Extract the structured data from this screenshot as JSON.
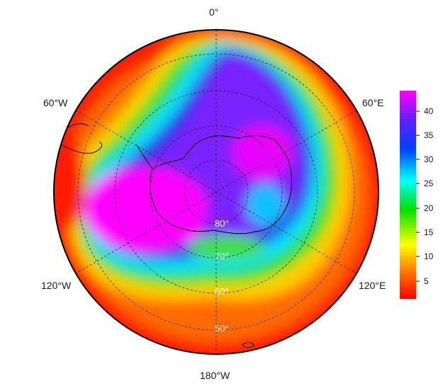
{
  "map": {
    "projection": "south polar stereographic",
    "longitude_labels": {
      "top": "0°",
      "left_top": "60°W",
      "right_top": "60°E",
      "left_bottom": "120°W",
      "right_bottom": "120°E",
      "bottom": "180°W"
    },
    "latitude_labels": [
      "80°",
      "70°",
      "60°",
      "50°"
    ],
    "colorbar": {
      "ticks": [
        "40",
        "35",
        "30",
        "25",
        "20",
        "15",
        "10",
        "5"
      ],
      "range": [
        1,
        44
      ],
      "colors": [
        "#ff0000",
        "#ff8000",
        "#ffff00",
        "#00e000",
        "#00ffff",
        "#0040ff",
        "#6020ff",
        "#ff00ff"
      ]
    },
    "regions": {
      "outer_ring": "red-orange low values",
      "pacific_sector": "magenta high values",
      "indian_sector": "purple-violet high values"
    }
  }
}
